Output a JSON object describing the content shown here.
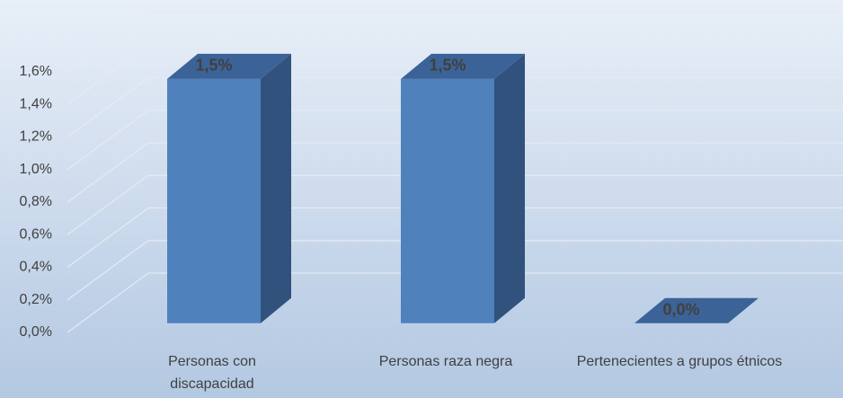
{
  "chart_data": {
    "type": "bar3d",
    "categories": [
      "Personas con discapacidad",
      "Personas raza negra",
      "Pertenecientes a grupos étnicos"
    ],
    "values": [
      1.5,
      1.5,
      0.0
    ],
    "value_labels": [
      "1,5%",
      "1,5%",
      "0,0%"
    ],
    "color": "#4f81bd",
    "ylim": [
      0,
      1.6
    ],
    "yticks": [
      {
        "value": 0,
        "label": "0,0%"
      },
      {
        "value": 0.2,
        "label": "0,2%"
      },
      {
        "value": 0.4,
        "label": "0,4%"
      },
      {
        "value": 0.6,
        "label": "0,6%"
      },
      {
        "value": 0.8,
        "label": "0,8%"
      },
      {
        "value": 1.0,
        "label": "1,0%"
      },
      {
        "value": 1.2,
        "label": "1,2%"
      },
      {
        "value": 1.4,
        "label": "1,4%"
      },
      {
        "value": 1.6,
        "label": "1,6%"
      }
    ],
    "grid": true
  }
}
